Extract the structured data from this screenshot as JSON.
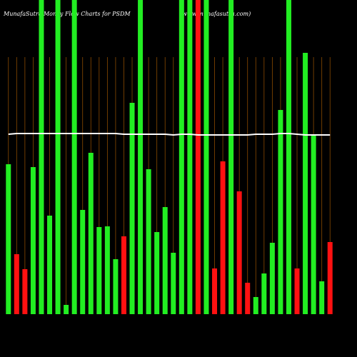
{
  "chart_data": {
    "type": "bar",
    "title": "MunafaSutra Money Flow Charts for PSDM",
    "subtitle": "(www.munafasutra.com)",
    "categories": [
      null,
      null,
      null,
      null,
      null,
      null,
      null,
      null,
      null,
      null,
      null,
      null,
      null,
      null,
      null,
      null,
      null,
      null,
      null,
      null,
      null,
      null,
      null,
      null,
      null,
      null,
      null,
      null,
      null,
      null,
      null,
      null,
      null,
      null,
      null,
      null,
      null,
      null,
      null,
      null
    ],
    "ylim": [
      0,
      440
    ],
    "grid": true,
    "series": [
      {
        "name": "money flow",
        "values": [
          210,
          84,
          63,
          206,
          460,
          138,
          460,
          13,
          460,
          146,
          226,
          122,
          123,
          77,
          109,
          296,
          460,
          203,
          115,
          150,
          86,
          460,
          460,
          460,
          460,
          64,
          214,
          460,
          172,
          44,
          24,
          57,
          100,
          286,
          460,
          64,
          366,
          251,
          46,
          101
        ],
        "colors": [
          "#22ee22",
          "#ff1111",
          "#ff1111",
          "#22ee22",
          "#22ee22",
          "#22ee22",
          "#22ee22",
          "#22ee22",
          "#22ee22",
          "#22ee22",
          "#22ee22",
          "#22ee22",
          "#22ee22",
          "#22ee22",
          "#ff1111",
          "#22ee22",
          "#22ee22",
          "#22ee22",
          "#22ee22",
          "#22ee22",
          "#22ee22",
          "#22ee22",
          "#22ee22",
          "#ff1111",
          "#22ee22",
          "#ff1111",
          "#ff1111",
          "#22ee22",
          "#ff1111",
          "#ff1111",
          "#22ee22",
          "#22ee22",
          "#22ee22",
          "#22ee22",
          "#22ee22",
          "#ff1111",
          "#22ee22",
          "#22ee22",
          "#22ee22",
          "#ff1111"
        ]
      },
      {
        "name": "trend",
        "type": "line",
        "color": "#ffffff",
        "values": [
          252,
          253,
          253,
          253,
          253,
          253,
          253,
          253,
          253,
          253,
          253,
          253,
          253,
          253,
          252,
          252,
          252,
          252,
          252,
          252,
          251,
          252,
          252,
          251,
          251,
          251,
          251,
          251,
          251,
          251,
          252,
          252,
          252,
          253,
          253,
          252,
          251,
          251,
          251,
          251
        ]
      }
    ]
  }
}
